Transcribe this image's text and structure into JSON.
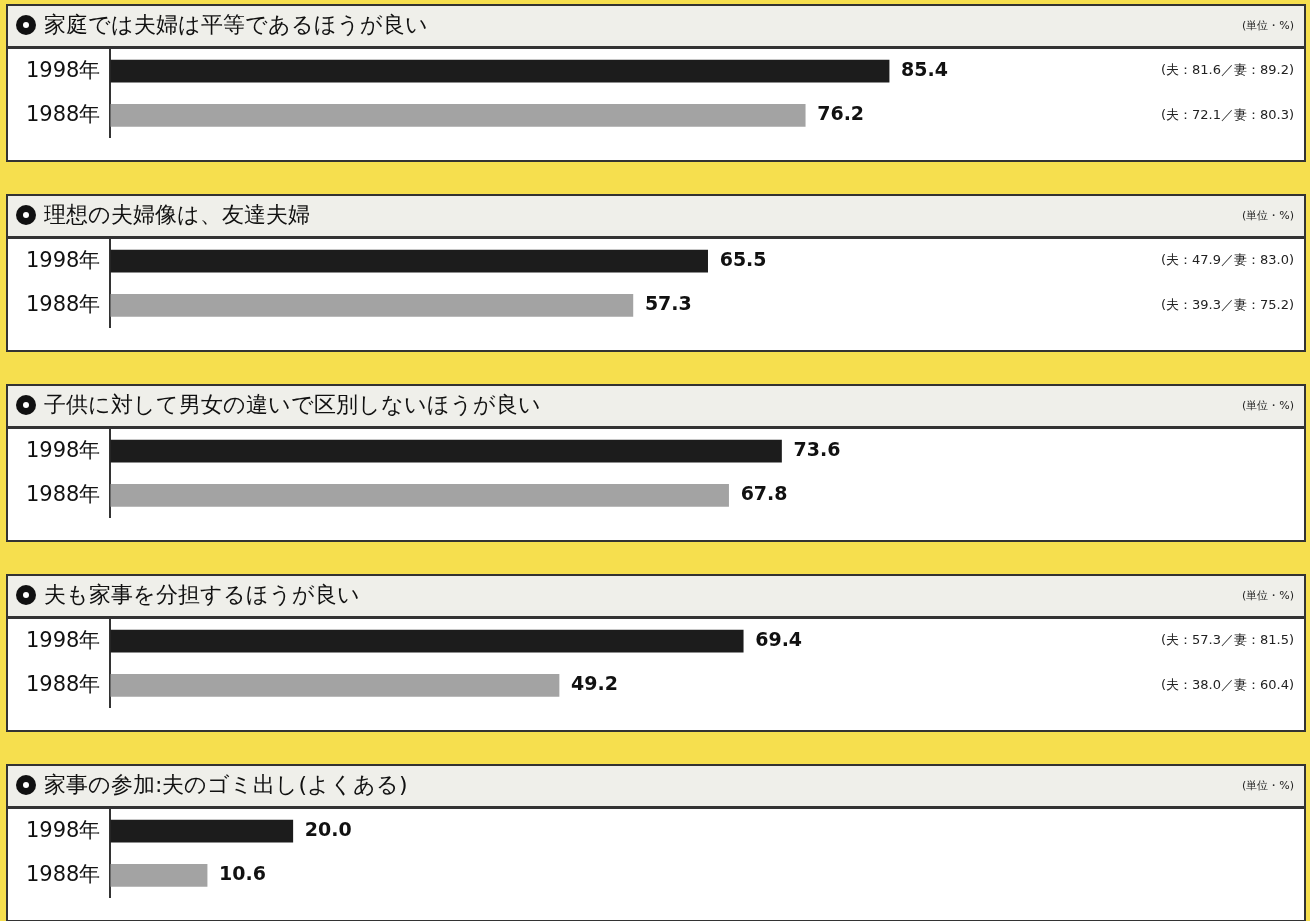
{
  "chart_data": [
    {
      "type": "bar",
      "orientation": "horizontal",
      "title": "家庭では夫婦は平等であるほうが良い",
      "categories": [
        "1998年",
        "1988年"
      ],
      "values": [
        85.4,
        76.2
      ],
      "colors": [
        "#1c1c1c",
        "#a3a3a3"
      ],
      "data_labels": true,
      "tick_labels": "y",
      "grid": false,
      "legend": false,
      "annotations": [
        "(単位・%)",
        "(夫：81.6／妻：89.2)",
        "(夫：72.1／妻：80.3)"
      ]
    },
    {
      "type": "bar",
      "orientation": "horizontal",
      "title": "理想の夫婦像は、友達夫婦",
      "categories": [
        "1998年",
        "1988年"
      ],
      "values": [
        65.5,
        57.3
      ],
      "colors": [
        "#1c1c1c",
        "#a3a3a3"
      ],
      "data_labels": true,
      "tick_labels": "y",
      "grid": false,
      "legend": false,
      "annotations": [
        "(単位・%)",
        "(夫：47.9／妻：83.0)",
        "(夫：39.3／妻：75.2)"
      ]
    },
    {
      "type": "bar",
      "orientation": "horizontal",
      "title": "子供に対して男女の違いで区別しないほうが良い",
      "categories": [
        "1998年",
        "1988年"
      ],
      "values": [
        73.6,
        67.8
      ],
      "colors": [
        "#1c1c1c",
        "#a3a3a3"
      ],
      "data_labels": true,
      "tick_labels": "y",
      "grid": false,
      "legend": false,
      "annotations": [
        "(単位・%)"
      ]
    },
    {
      "type": "bar",
      "orientation": "horizontal",
      "title": "夫も家事を分担するほうが良い",
      "categories": [
        "1998年",
        "1988年"
      ],
      "values": [
        69.4,
        49.2
      ],
      "colors": [
        "#1c1c1c",
        "#a3a3a3"
      ],
      "data_labels": true,
      "tick_labels": "y",
      "grid": false,
      "legend": false,
      "annotations": [
        "(単位・%)",
        "(夫：57.3／妻：81.5)",
        "(夫：38.0／妻：60.4)"
      ]
    },
    {
      "type": "bar",
      "orientation": "horizontal",
      "title": "家事の参加:夫のゴミ出し(よくある)",
      "categories": [
        "1998年",
        "1988年"
      ],
      "values": [
        20.0,
        10.6
      ],
      "value_labels": [
        "20.0",
        "10.6"
      ],
      "colors": [
        "#1c1c1c",
        "#a3a3a3"
      ],
      "tick_labels": "y",
      "grid": false,
      "legend": false,
      "annotations": [
        "(単位・%)"
      ]
    }
  ]
}
